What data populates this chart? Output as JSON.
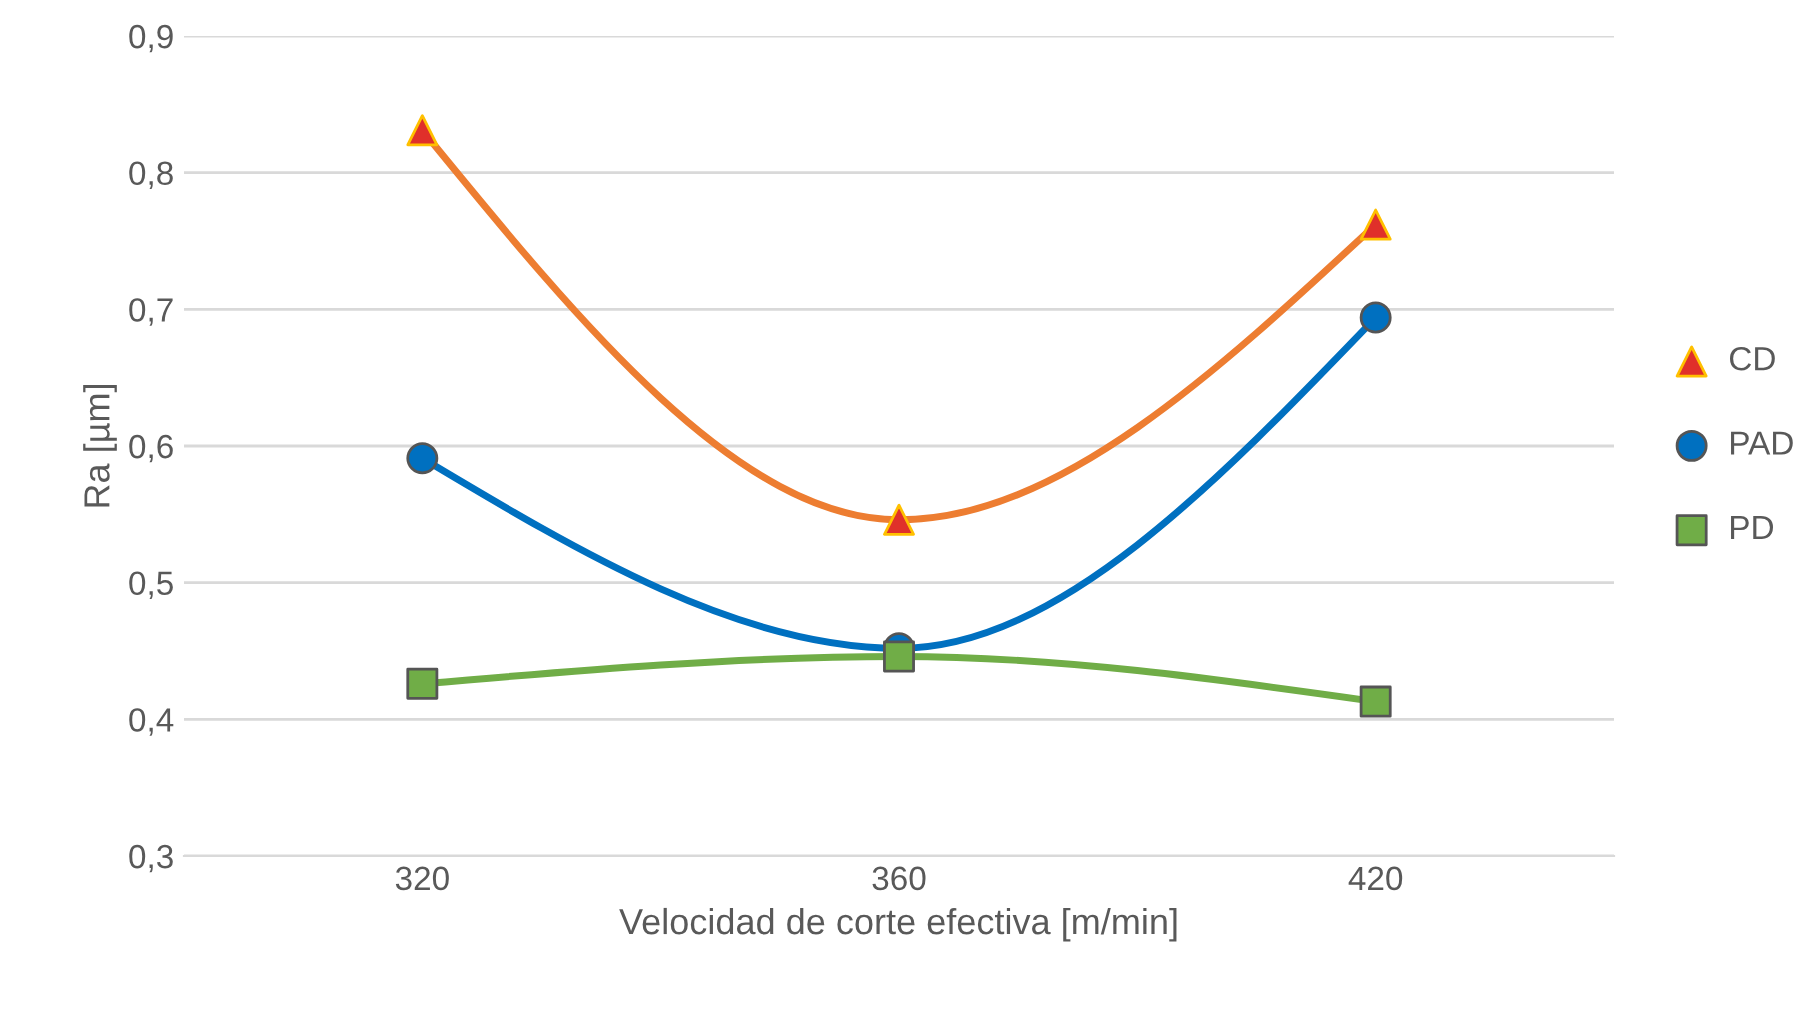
{
  "chart_data": {
    "type": "line",
    "xlabel": "Velocidad de corte efectiva [m/min]",
    "ylabel": "Ra [µm]",
    "categories": [
      "320",
      "360",
      "420"
    ],
    "series": [
      {
        "name": "CD",
        "color": "#ed7d31",
        "marker": "triangle",
        "values": [
          0.831,
          0.546,
          0.762
        ]
      },
      {
        "name": "PAD",
        "color": "#0070c0",
        "marker": "circle",
        "values": [
          0.591,
          0.452,
          0.694
        ]
      },
      {
        "name": "PD",
        "color": "#70ad47",
        "marker": "square",
        "values": [
          0.426,
          0.446,
          0.413
        ]
      }
    ],
    "ylim": [
      0.3,
      0.9
    ],
    "yticks": [
      {
        "value": 0.3,
        "label": "0,3"
      },
      {
        "value": 0.4,
        "label": "0,4"
      },
      {
        "value": 0.5,
        "label": "0,5"
      },
      {
        "value": 0.6,
        "label": "0,6"
      },
      {
        "value": 0.7,
        "label": "0,7"
      },
      {
        "value": 0.8,
        "label": "0,8"
      },
      {
        "value": 0.9,
        "label": "0,9"
      }
    ],
    "grid": "y",
    "legend": "right",
    "line_style": "solid"
  }
}
